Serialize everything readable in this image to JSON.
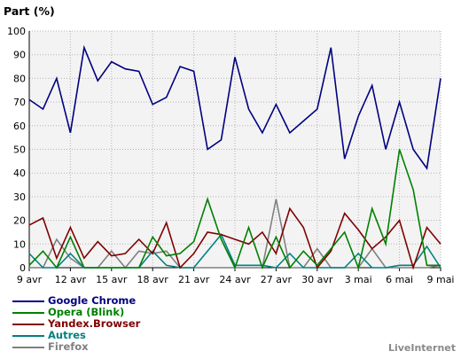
{
  "chart_data": {
    "type": "line",
    "title": "Part (%)",
    "ylim": [
      0,
      100
    ],
    "yticks": [
      0,
      10,
      20,
      30,
      40,
      50,
      60,
      70,
      80,
      90,
      100
    ],
    "xlim": [
      0,
      30
    ],
    "xticks": [
      {
        "i": 0,
        "label": "9 avr"
      },
      {
        "i": 3,
        "label": "12 avr"
      },
      {
        "i": 6,
        "label": "15 avr"
      },
      {
        "i": 9,
        "label": "18 avr"
      },
      {
        "i": 12,
        "label": "21 avr"
      },
      {
        "i": 15,
        "label": "24 avr"
      },
      {
        "i": 18,
        "label": "27 avr"
      },
      {
        "i": 21,
        "label": "30 avr"
      },
      {
        "i": 24,
        "label": "3 mai"
      },
      {
        "i": 27,
        "label": "6 mai"
      },
      {
        "i": 30,
        "label": "9 mai"
      }
    ],
    "grid": true,
    "legend_position": "bottom-left",
    "series": [
      {
        "name": "Google Chrome",
        "color": "#000080",
        "values": [
          71,
          67,
          80,
          57,
          93,
          79,
          87,
          84,
          83,
          69,
          72,
          85,
          83,
          50,
          54,
          89,
          67,
          57,
          69,
          57,
          62,
          67,
          93,
          46,
          64,
          77,
          50,
          70,
          50,
          42,
          80
        ]
      },
      {
        "name": "Opera (Blink)",
        "color": "#008000",
        "values": [
          1,
          7,
          0,
          13,
          0,
          0,
          0,
          0,
          0,
          13,
          5,
          6,
          11,
          29,
          12,
          0,
          17,
          0,
          13,
          0,
          7,
          1,
          8,
          15,
          0,
          25,
          10,
          50,
          33,
          1,
          1
        ]
      },
      {
        "name": "Yandex.Browser",
        "color": "#800000",
        "values": [
          18,
          21,
          4,
          17,
          4,
          11,
          5,
          6,
          12,
          6,
          19,
          0,
          6,
          15,
          14,
          12,
          10,
          15,
          6,
          25,
          17,
          0,
          7,
          23,
          16,
          8,
          13,
          20,
          0,
          17,
          10
        ]
      },
      {
        "name": "Autres",
        "color": "#008080",
        "values": [
          6,
          0,
          0,
          6,
          0,
          0,
          0,
          0,
          0,
          7,
          1,
          0,
          0,
          7,
          14,
          1,
          1,
          1,
          0,
          6,
          0,
          0,
          0,
          0,
          6,
          0,
          0,
          1,
          1,
          9,
          0
        ]
      },
      {
        "name": "Firefox",
        "color": "#808080",
        "values": [
          0,
          0,
          12,
          4,
          0,
          0,
          7,
          0,
          7,
          6,
          7,
          0,
          0,
          0,
          0,
          0,
          0,
          0,
          29,
          0,
          0,
          8,
          0,
          0,
          0,
          8,
          0,
          0,
          0,
          0,
          1
        ]
      }
    ]
  },
  "watermark": "LiveInternet"
}
